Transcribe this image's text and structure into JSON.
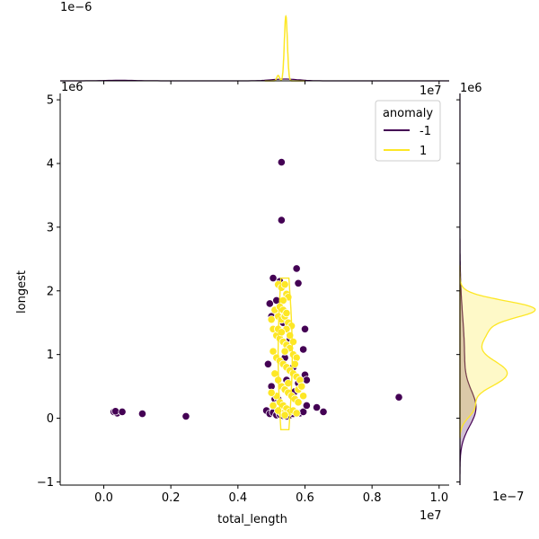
{
  "chart_data": {
    "type": "scatter",
    "subtype": "jointplot-with-kde-marginals",
    "xlabel": "total_length",
    "ylabel": "longest",
    "x_offset_label": "1e7",
    "y_offset_label": "1e6",
    "top_marginal_offset_label": "1e−6",
    "right_marginal_offset_label": "1e−7",
    "xlim": [
      -0.13,
      1.03
    ],
    "ylim": [
      -1.05,
      5.1
    ],
    "xticks": [
      {
        "value": 0.0,
        "label": "0.0"
      },
      {
        "value": 0.2,
        "label": "0.2"
      },
      {
        "value": 0.4,
        "label": "0.4"
      },
      {
        "value": 0.6,
        "label": "0.6"
      },
      {
        "value": 0.8,
        "label": "0.8"
      },
      {
        "value": 1.0,
        "label": "1.0"
      }
    ],
    "yticks": [
      {
        "value": -1,
        "label": "−1"
      },
      {
        "value": 0,
        "label": "0"
      },
      {
        "value": 1,
        "label": "1"
      },
      {
        "value": 2,
        "label": "2"
      },
      {
        "value": 3,
        "label": "3"
      },
      {
        "value": 4,
        "label": "4"
      },
      {
        "value": 5,
        "label": "5"
      }
    ],
    "legend": {
      "title": "anomaly",
      "placement": "top-right",
      "entries": [
        {
          "label": "-1",
          "color": "#440154"
        },
        {
          "label": "1",
          "color": "#fde725"
        }
      ]
    },
    "series": [
      {
        "name": "-1",
        "color": "#440154",
        "points": [
          [
            0.03,
            0.1
          ],
          [
            0.04,
            0.08
          ],
          [
            0.035,
            0.11
          ],
          [
            0.055,
            0.1
          ],
          [
            0.115,
            0.07
          ],
          [
            0.245,
            0.03
          ],
          [
            0.485,
            0.12
          ],
          [
            0.495,
            0.07
          ],
          [
            0.505,
            0.09
          ],
          [
            0.515,
            0.05
          ],
          [
            0.525,
            0.06
          ],
          [
            0.535,
            0.04
          ],
          [
            0.545,
            0.03
          ],
          [
            0.555,
            0.05
          ],
          [
            0.565,
            0.07
          ],
          [
            0.575,
            0.09
          ],
          [
            0.585,
            0.08
          ],
          [
            0.595,
            0.1
          ],
          [
            0.605,
            0.2
          ],
          [
            0.635,
            0.17
          ],
          [
            0.655,
            0.1
          ],
          [
            0.88,
            0.33
          ],
          [
            0.53,
            4.02
          ],
          [
            0.53,
            3.11
          ],
          [
            0.575,
            2.35
          ],
          [
            0.58,
            2.12
          ],
          [
            0.525,
            2.15
          ],
          [
            0.505,
            2.2
          ],
          [
            0.495,
            1.8
          ],
          [
            0.5,
            1.6
          ],
          [
            0.515,
            1.85
          ],
          [
            0.6,
            1.4
          ],
          [
            0.595,
            1.08
          ],
          [
            0.6,
            0.68
          ],
          [
            0.605,
            0.6
          ],
          [
            0.49,
            0.85
          ],
          [
            0.5,
            0.5
          ],
          [
            0.51,
            0.3
          ],
          [
            0.57,
            0.42
          ],
          [
            0.58,
            0.55
          ],
          [
            0.52,
            0.3
          ],
          [
            0.545,
            0.6
          ],
          [
            0.555,
            1.25
          ],
          [
            0.535,
            1.5
          ],
          [
            0.54,
            0.95
          ],
          [
            0.565,
            0.8
          ]
        ]
      },
      {
        "name": "1",
        "color": "#fde725",
        "points": [
          [
            0.52,
            2.1
          ],
          [
            0.53,
            2.05
          ],
          [
            0.54,
            2.1
          ],
          [
            0.545,
            1.95
          ],
          [
            0.55,
            1.9
          ],
          [
            0.535,
            1.85
          ],
          [
            0.51,
            1.7
          ],
          [
            0.52,
            1.6
          ],
          [
            0.53,
            1.55
          ],
          [
            0.54,
            1.6
          ],
          [
            0.55,
            1.5
          ],
          [
            0.56,
            1.45
          ],
          [
            0.5,
            1.55
          ],
          [
            0.505,
            1.4
          ],
          [
            0.515,
            1.3
          ],
          [
            0.525,
            1.25
          ],
          [
            0.535,
            1.2
          ],
          [
            0.545,
            1.15
          ],
          [
            0.555,
            1.1
          ],
          [
            0.565,
            1.0
          ],
          [
            0.575,
            0.95
          ],
          [
            0.505,
            1.05
          ],
          [
            0.515,
            0.95
          ],
          [
            0.525,
            0.9
          ],
          [
            0.535,
            0.85
          ],
          [
            0.545,
            0.8
          ],
          [
            0.555,
            0.75
          ],
          [
            0.565,
            0.7
          ],
          [
            0.575,
            0.65
          ],
          [
            0.585,
            0.6
          ],
          [
            0.51,
            0.7
          ],
          [
            0.52,
            0.6
          ],
          [
            0.53,
            0.5
          ],
          [
            0.54,
            0.45
          ],
          [
            0.55,
            0.4
          ],
          [
            0.56,
            0.35
          ],
          [
            0.57,
            0.3
          ],
          [
            0.58,
            0.25
          ],
          [
            0.515,
            0.35
          ],
          [
            0.525,
            0.25
          ],
          [
            0.535,
            0.2
          ],
          [
            0.545,
            0.15
          ],
          [
            0.555,
            0.1
          ],
          [
            0.565,
            0.12
          ],
          [
            0.575,
            0.08
          ],
          [
            0.53,
            0.08
          ],
          [
            0.54,
            0.05
          ],
          [
            0.52,
            0.12
          ],
          [
            0.5,
            0.4
          ],
          [
            0.505,
            0.2
          ],
          [
            0.545,
            1.4
          ],
          [
            0.555,
            1.3
          ],
          [
            0.565,
            1.2
          ],
          [
            0.525,
            1.75
          ],
          [
            0.535,
            1.7
          ],
          [
            0.545,
            1.65
          ],
          [
            0.52,
            1.4
          ],
          [
            0.53,
            1.35
          ],
          [
            0.54,
            1.05
          ],
          [
            0.55,
            0.55
          ],
          [
            0.58,
            0.45
          ],
          [
            0.59,
            0.5
          ],
          [
            0.595,
            0.35
          ],
          [
            0.57,
            0.85
          ]
        ]
      }
    ]
  }
}
